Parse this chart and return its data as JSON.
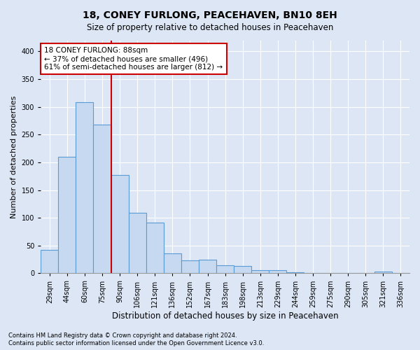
{
  "title": "18, CONEY FURLONG, PEACEHAVEN, BN10 8EH",
  "subtitle": "Size of property relative to detached houses in Peacehaven",
  "xlabel": "Distribution of detached houses by size in Peacehaven",
  "ylabel": "Number of detached properties",
  "footnote1": "Contains HM Land Registry data © Crown copyright and database right 2024.",
  "footnote2": "Contains public sector information licensed under the Open Government Licence v3.0.",
  "categories": [
    "29sqm",
    "44sqm",
    "60sqm",
    "75sqm",
    "90sqm",
    "106sqm",
    "121sqm",
    "136sqm",
    "152sqm",
    "167sqm",
    "183sqm",
    "198sqm",
    "213sqm",
    "229sqm",
    "244sqm",
    "259sqm",
    "275sqm",
    "290sqm",
    "305sqm",
    "321sqm",
    "336sqm"
  ],
  "values": [
    42,
    210,
    308,
    268,
    177,
    109,
    91,
    36,
    23,
    25,
    15,
    13,
    5,
    5,
    2,
    1,
    0,
    0,
    0,
    3,
    0
  ],
  "bar_color": "#c6d9f0",
  "bar_edge_color": "#5b9bd5",
  "vline_index": 4,
  "vline_color": "#cc0000",
  "annotation_line1": "18 CONEY FURLONG: 88sqm",
  "annotation_line2": "← 37% of detached houses are smaller (496)",
  "annotation_line3": "61% of semi-detached houses are larger (812) →",
  "annotation_box_color": "#ffffff",
  "annotation_box_edge": "#cc0000",
  "bg_color": "#dce6f5",
  "plot_bg_color": "#dce6f5",
  "ylim": [
    0,
    420
  ],
  "yticks": [
    0,
    50,
    100,
    150,
    200,
    250,
    300,
    350,
    400
  ],
  "grid_color": "#ffffff",
  "title_fontsize": 10,
  "subtitle_fontsize": 8.5,
  "tick_fontsize": 7,
  "xlabel_fontsize": 8.5,
  "ylabel_fontsize": 8,
  "annotation_fontsize": 7.5,
  "footnote_fontsize": 6
}
